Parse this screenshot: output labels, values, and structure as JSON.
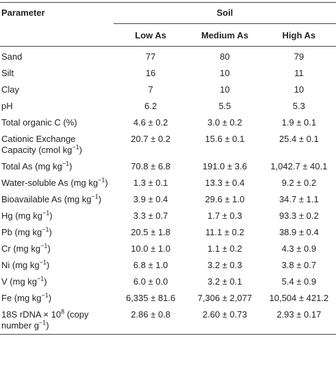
{
  "table": {
    "header": {
      "parameter": "Parameter",
      "group": "Soil",
      "columns": [
        "Low As",
        "Medium As",
        "High As"
      ]
    },
    "rows": [
      [
        "Sand",
        "77",
        "80",
        "79"
      ],
      [
        "Silt",
        "16",
        "10",
        "11"
      ],
      [
        "Clay",
        "7",
        "10",
        "10"
      ],
      [
        "pH",
        "6.2",
        "5.5",
        "5.3"
      ],
      [
        "Total organic C (%)",
        "4.6 ± 0.2",
        "3.0 ± 0.2",
        "1.9 ± 0.1"
      ],
      [
        [
          "Cationic Exchange Capacity (cmol kg",
          {
            "sup": "−1"
          },
          ")"
        ],
        "20.7 ± 0.2",
        "15.6 ± 0.1",
        "25.4 ± 0.1"
      ],
      [
        [
          "Total As (mg kg",
          {
            "sup": "−1"
          },
          ")"
        ],
        "70.8 ± 6.8",
        "191.0 ± 3.6",
        "1,042.7 ± 40.1"
      ],
      [
        [
          "Water-soluble As (mg kg",
          {
            "sup": "−1"
          },
          ")"
        ],
        "1.3 ± 0.1",
        "13.3 ± 0.4",
        "9.2 ± 0.2"
      ],
      [
        [
          "Bioavailable As (mg kg",
          {
            "sup": "−1"
          },
          ")"
        ],
        "3.9 ± 0.4",
        "29.6 ± 1.0",
        "34.7 ± 1.1"
      ],
      [
        [
          "Hg (mg kg",
          {
            "sup": "−1"
          },
          ")"
        ],
        "3.3 ± 0.7",
        "1.7 ± 0.3",
        "93.3 ± 0.2"
      ],
      [
        [
          "Pb (mg kg",
          {
            "sup": "−1"
          },
          ")"
        ],
        "20.5 ± 1.8",
        "11.1 ± 0.2",
        "38.9 ± 0.4"
      ],
      [
        [
          "Cr (mg kg",
          {
            "sup": "−1"
          },
          ")"
        ],
        "10.0 ± 1.0",
        "1.1 ± 0.2",
        "4.3 ± 0.9"
      ],
      [
        [
          "Ni (mg kg",
          {
            "sup": "−1"
          },
          ")"
        ],
        "6.8 ± 1.0",
        "3.2 ± 0.3",
        "3.8 ± 0.7"
      ],
      [
        [
          "V (mg kg",
          {
            "sup": "−1"
          },
          ")"
        ],
        "6.0 ± 0.0",
        "3.2 ± 0.1",
        "5.4 ± 0.9"
      ],
      [
        [
          "Fe (mg kg",
          {
            "sup": "−1"
          },
          ")"
        ],
        "6,335 ± 81.6",
        "7,306 ± 2,077",
        "10,504 ± 421.2"
      ],
      [
        [
          "18S rDNA × 10",
          {
            "sup": "8"
          },
          " (copy number g",
          {
            "sup": "−1"
          },
          ")"
        ],
        "2.86 ± 0.8",
        "2.60 ± 0.73",
        "2.93 ± 0.17"
      ]
    ]
  }
}
